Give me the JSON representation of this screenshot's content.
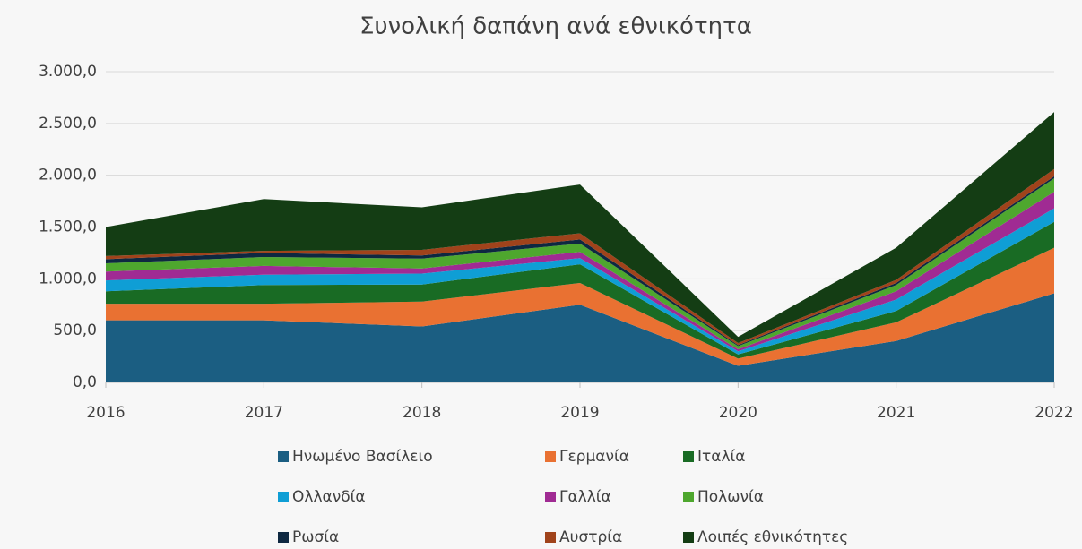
{
  "chart_data": {
    "type": "stacked_area",
    "title": "Συνολική  δαπάνη ανά εθνικότητα",
    "categories": [
      "2016",
      "2017",
      "2018",
      "2019",
      "2020",
      "2021",
      "2022"
    ],
    "series": [
      {
        "name": "Ηνωμένο Βασίλειο",
        "color": "#1b5e82",
        "values": [
          600,
          600,
          540,
          750,
          160,
          400,
          860
        ]
      },
      {
        "name": "Γερμανία",
        "color": "#e97132",
        "values": [
          160,
          160,
          240,
          210,
          70,
          180,
          440
        ]
      },
      {
        "name": "Ιταλία",
        "color": "#196b24",
        "values": [
          120,
          180,
          165,
          180,
          40,
          110,
          250
        ]
      },
      {
        "name": "Ολλανδία",
        "color": "#0f9ed5",
        "values": [
          105,
          100,
          105,
          60,
          30,
          110,
          130
        ]
      },
      {
        "name": "Γαλλία",
        "color": "#a02b93",
        "values": [
          85,
          85,
          50,
          60,
          20,
          80,
          160
        ]
      },
      {
        "name": "Πολωνία",
        "color": "#4ea72e",
        "values": [
          80,
          85,
          95,
          80,
          30,
          60,
          130
        ]
      },
      {
        "name": "Ρωσία",
        "color": "#0e2841",
        "values": [
          40,
          40,
          30,
          40,
          10,
          20,
          20
        ]
      },
      {
        "name": "Αυστρία",
        "color": "#a0431b",
        "values": [
          30,
          20,
          55,
          60,
          20,
          30,
          70
        ]
      },
      {
        "name": "Λοιπές εθνικότητες",
        "color": "#143d14",
        "values": [
          280,
          500,
          410,
          470,
          60,
          310,
          550
        ]
      }
    ],
    "ylim": [
      0,
      3000
    ],
    "yticks": [
      {
        "value": 0,
        "label": "0,0"
      },
      {
        "value": 500,
        "label": "500,0"
      },
      {
        "value": 1000,
        "label": "1.000,0"
      },
      {
        "value": 1500,
        "label": "1.500,0"
      },
      {
        "value": 2000,
        "label": "2.000,0"
      },
      {
        "value": 2500,
        "label": "2.500,0"
      },
      {
        "value": 3000,
        "label": "3.000,0"
      }
    ],
    "grid": true,
    "legend": "bottom"
  }
}
